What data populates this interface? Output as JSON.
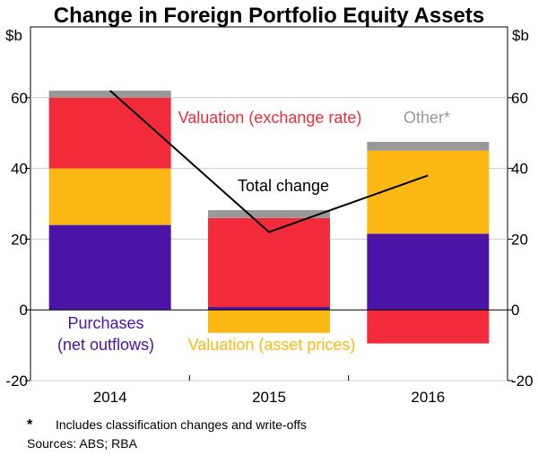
{
  "chart_data": {
    "type": "bar",
    "stacked": true,
    "title": "Change in Foreign Portfolio Equity Assets",
    "unit_left": "$b",
    "unit_right": "$b",
    "ylim": [
      -20,
      80
    ],
    "yticks": [
      -20,
      0,
      20,
      40,
      60
    ],
    "categories": [
      "2014",
      "2015",
      "2016"
    ],
    "series": [
      {
        "name": "Purchases (net outflows)",
        "color": "#4a15a6",
        "values": [
          24,
          0.8,
          21.5
        ]
      },
      {
        "name": "Valuation (asset prices)",
        "color": "#fdb813",
        "values": [
          16,
          -6.5,
          23.5
        ]
      },
      {
        "name": "Valuation (exchange rate)",
        "color": "#f22b3a",
        "values": [
          20,
          25.2,
          -9.5
        ]
      },
      {
        "name": "Other*",
        "color": "#999999",
        "values": [
          2,
          2.2,
          2.5
        ]
      }
    ],
    "total_change": {
      "name": "Total change",
      "color": "#000000",
      "values": [
        62,
        22,
        38
      ]
    },
    "annotations": {
      "purchases_line1": "Purchases",
      "purchases_line2": "(net outflows)",
      "asset_prices": "Valuation (asset prices)",
      "exchange_rate": "Valuation (exchange rate)",
      "other": "Other*",
      "total": "Total change"
    },
    "footnote_marker": "*",
    "footnote": "Includes classification changes and write-offs",
    "sources": "Sources: ABS; RBA"
  }
}
